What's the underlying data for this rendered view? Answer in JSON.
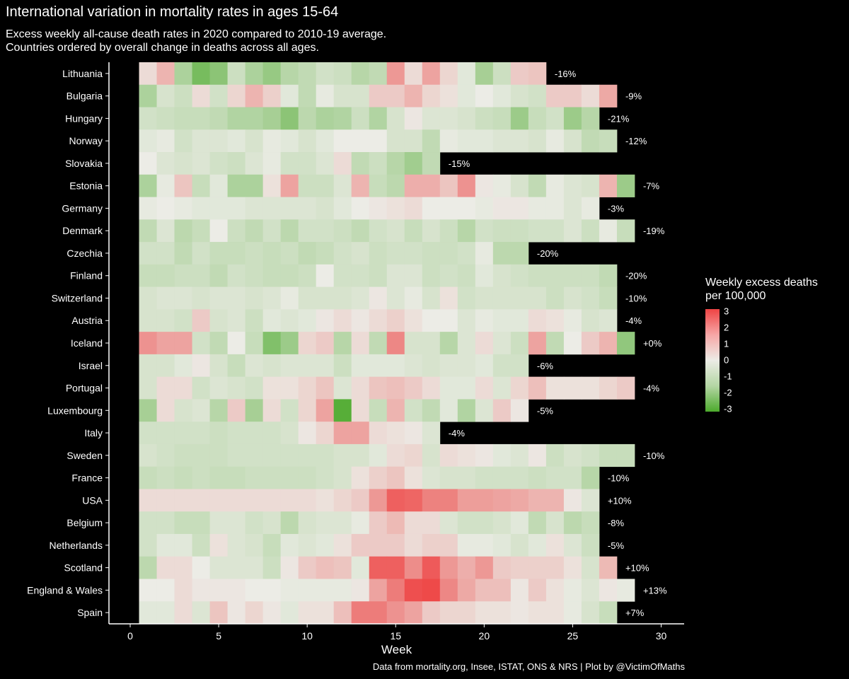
{
  "chart_data": {
    "type": "heatmap",
    "title": "International variation in mortality rates in ages 15-64",
    "subtitle_lines": [
      "Excess weekly all-cause death rates in 2020 compared to 2010-19 average.",
      "Countries ordered by overall change in deaths across all ages."
    ],
    "xlabel": "Week",
    "xlim": [
      -1.2,
      31.3
    ],
    "xticks": [
      0,
      5,
      10,
      15,
      20,
      25,
      30
    ],
    "caption": "Data from mortality.org, Insee, ISTAT, ONS & NRS | Plot by @VictimOfMaths",
    "legend": {
      "title_lines": [
        "Weekly excess deaths",
        "per 100,000"
      ],
      "labels": [
        "3",
        "2",
        "1",
        "0",
        "-1",
        "-2",
        "-3"
      ],
      "range": [
        -3,
        3
      ],
      "colors": {
        "high": "#ee4444",
        "mid": "#ecece6",
        "low": "#4caa2c"
      }
    },
    "countries": [
      {
        "name": "Lithuania",
        "change": "-16%",
        "values": [
          0.3,
          1.0,
          -1.2,
          -2.2,
          -1.8,
          -0.6,
          -1.2,
          -1.6,
          -1.0,
          -0.8,
          -0.5,
          -0.6,
          -1.0,
          -0.8,
          1.5,
          0.3,
          1.3,
          0.4,
          -0.2,
          -1.3,
          -0.6,
          0.6,
          0.7
        ]
      },
      {
        "name": "Bulgaria",
        "change": "-9%",
        "values": [
          -1.2,
          -0.4,
          -0.6,
          0.3,
          -0.5,
          0.4,
          1.0,
          0.5,
          -0.2,
          -0.8,
          -0.1,
          -0.4,
          -0.4,
          0.6,
          0.6,
          1.0,
          0.4,
          0.2,
          -0.2,
          0.0,
          -0.2,
          -0.4,
          -0.5,
          0.6,
          0.6,
          0.3,
          1.2
        ]
      },
      {
        "name": "Hungary",
        "change": "-21%",
        "values": [
          -0.5,
          -0.6,
          -0.7,
          -0.7,
          -0.8,
          -1.1,
          -1.1,
          -1.3,
          -1.8,
          -0.9,
          -1.2,
          -1.1,
          -0.6,
          -1.1,
          -0.4,
          0.1,
          -0.3,
          -0.3,
          -0.4,
          -0.6,
          -0.7,
          -1.5,
          -0.7,
          -0.5,
          -1.5,
          -1.0
        ]
      },
      {
        "name": "Norway",
        "change": "-12%",
        "values": [
          -0.2,
          -0.1,
          -0.5,
          -0.3,
          -0.3,
          -0.2,
          -0.4,
          -0.1,
          -0.2,
          -0.4,
          -0.2,
          0.0,
          0.0,
          0.0,
          -0.4,
          -0.4,
          -0.8,
          -0.1,
          -0.2,
          -0.2,
          -0.3,
          -0.3,
          -0.4,
          -0.1,
          -0.4,
          -0.8,
          -0.7
        ]
      },
      {
        "name": "Slovakia",
        "change": "-15%",
        "values": [
          0.0,
          -0.3,
          -0.4,
          -0.3,
          -0.5,
          -0.6,
          -0.3,
          -0.1,
          -0.5,
          -0.5,
          -0.3,
          0.3,
          -0.8,
          -0.6,
          -1.0,
          -1.4,
          -0.8
        ]
      },
      {
        "name": "Estonia",
        "change": "-7%",
        "values": [
          -1.2,
          -0.1,
          0.7,
          -0.7,
          -0.2,
          -1.2,
          -1.2,
          0.2,
          1.3,
          -0.6,
          -0.6,
          -0.3,
          1.0,
          -0.7,
          -0.9,
          1.1,
          1.1,
          0.7,
          1.6,
          0.1,
          -0.1,
          -0.4,
          -0.8,
          -0.1,
          -0.3,
          -0.4,
          1.0,
          -1.5
        ]
      },
      {
        "name": "Germany",
        "change": "-3%",
        "values": [
          -0.1,
          0.0,
          -0.1,
          -0.2,
          -0.2,
          -0.2,
          -0.3,
          -0.3,
          -0.3,
          -0.3,
          -0.4,
          -0.2,
          0.0,
          0.1,
          0.2,
          0.3,
          0.0,
          0.0,
          0.0,
          -0.1,
          0.1,
          0.1,
          -0.1,
          -0.1,
          -0.3,
          -0.1
        ]
      },
      {
        "name": "Denmark",
        "change": "-19%",
        "values": [
          -0.8,
          -0.3,
          -0.9,
          -0.7,
          0.0,
          -0.6,
          -0.8,
          -0.5,
          -0.9,
          -0.5,
          -0.5,
          -0.6,
          -0.8,
          -0.5,
          -0.4,
          -0.7,
          -0.4,
          -0.6,
          -1.0,
          -0.5,
          -0.6,
          -0.6,
          -0.5,
          -0.5,
          -0.3,
          -0.6,
          -0.1,
          -0.7
        ]
      },
      {
        "name": "Czechia",
        "change": "-20%",
        "values": [
          -0.5,
          -0.5,
          -0.8,
          -0.5,
          -0.7,
          -0.7,
          -0.6,
          -0.7,
          -0.6,
          -0.8,
          -0.7,
          -0.5,
          -0.4,
          -0.6,
          -0.5,
          -0.5,
          -0.6,
          -0.6,
          -0.5,
          -0.1,
          -0.9,
          -0.9
        ]
      },
      {
        "name": "Finland",
        "change": "-20%",
        "values": [
          -0.7,
          -0.7,
          -0.6,
          -0.6,
          -0.8,
          -0.5,
          -0.6,
          -0.7,
          -0.7,
          -0.6,
          0.0,
          -0.5,
          -0.5,
          -0.6,
          -0.3,
          -0.3,
          -0.6,
          -0.5,
          -0.6,
          -0.2,
          -0.4,
          -0.5,
          -0.6,
          -0.6,
          -0.6,
          -0.6,
          -0.8
        ]
      },
      {
        "name": "Switzerland",
        "change": "-10%",
        "values": [
          -0.4,
          -0.3,
          -0.3,
          -0.4,
          -0.3,
          -0.3,
          -0.4,
          -0.3,
          -0.1,
          -0.4,
          -0.4,
          -0.4,
          -0.3,
          0.1,
          -0.3,
          -0.1,
          -0.4,
          0.2,
          -0.5,
          -0.4,
          -0.4,
          -0.4,
          -0.4,
          -0.6,
          -0.4,
          -0.5,
          -0.7
        ]
      },
      {
        "name": "Austria",
        "change": "-4%",
        "values": [
          -0.4,
          -0.4,
          -0.5,
          0.6,
          -0.4,
          -0.3,
          -0.6,
          -0.2,
          -0.3,
          -0.2,
          0.1,
          0.3,
          0.1,
          0.3,
          0.5,
          0.2,
          0.0,
          0.0,
          -0.3,
          -0.1,
          -0.2,
          -0.2,
          0.3,
          0.2,
          -0.1,
          -0.4,
          -0.3
        ]
      },
      {
        "name": "Iceland",
        "change": "+0%",
        "values": [
          1.6,
          1.3,
          1.3,
          -0.5,
          -0.8,
          0.0,
          -0.7,
          -2.0,
          -1.5,
          0.4,
          0.6,
          -1.0,
          0.3,
          -0.8,
          1.8,
          -0.4,
          -0.4,
          -1.0,
          -0.3,
          0.3,
          -0.3,
          -0.6,
          1.3,
          -0.8,
          0.0,
          0.6,
          1.0,
          -1.7
        ]
      },
      {
        "name": "Israel",
        "change": "-6%",
        "values": [
          -0.4,
          -0.4,
          -0.2,
          0.1,
          -0.4,
          -0.7,
          -0.3,
          -0.4,
          -0.3,
          -0.3,
          -0.3,
          -0.6,
          -0.2,
          -0.2,
          -0.2,
          -0.3,
          -0.4,
          -0.3,
          -0.3,
          -0.2,
          -0.5,
          -0.5
        ]
      },
      {
        "name": "Portugal",
        "change": "-4%",
        "values": [
          -0.4,
          0.3,
          0.3,
          -0.5,
          -0.3,
          -0.4,
          -0.5,
          0.2,
          0.2,
          0.4,
          0.7,
          -0.3,
          0.3,
          0.7,
          0.8,
          0.6,
          0.3,
          -0.2,
          -0.2,
          0.3,
          -0.3,
          0.4,
          0.8,
          0.2,
          0.2,
          0.2,
          0.4,
          0.6
        ]
      },
      {
        "name": "Luxembourg",
        "change": "-5%",
        "values": [
          -1.3,
          0.3,
          -0.4,
          -0.3,
          -1.0,
          0.6,
          -1.3,
          0.3,
          -0.5,
          0.4,
          1.3,
          -2.8,
          0.3,
          -0.7,
          1.0,
          -0.5,
          -0.8,
          -0.2,
          -1.1,
          -0.3,
          0.6,
          0.1
        ]
      },
      {
        "name": "Italy",
        "change": "-4%",
        "values": [
          -0.5,
          -0.5,
          -0.5,
          -0.5,
          -0.6,
          -0.5,
          -0.5,
          -0.5,
          -0.4,
          0.1,
          0.4,
          1.3,
          1.3,
          0.3,
          0.2,
          0.1,
          -0.3
        ]
      },
      {
        "name": "Sweden",
        "change": "-10%",
        "values": [
          -0.4,
          -0.5,
          -0.6,
          -0.6,
          -0.6,
          -0.5,
          -0.5,
          -0.5,
          -0.5,
          -0.5,
          -0.5,
          -0.4,
          -0.4,
          -0.2,
          0.3,
          0.4,
          -0.4,
          0.3,
          0.2,
          0.1,
          -0.2,
          -0.3,
          0.1,
          -0.6,
          -0.4,
          -0.5,
          -0.7,
          -0.7
        ]
      },
      {
        "name": "France",
        "change": "-10%",
        "values": [
          -0.7,
          -0.6,
          -0.7,
          -0.6,
          -0.7,
          -0.7,
          -0.6,
          -0.6,
          -0.6,
          -0.6,
          -0.5,
          -0.4,
          0.2,
          0.5,
          0.7,
          0.2,
          -0.3,
          -0.4,
          -0.4,
          -0.5,
          -0.5,
          -0.5,
          -0.6,
          -0.5,
          -0.5,
          -1.0
        ]
      },
      {
        "name": "USA",
        "change": "+10%",
        "values": [
          0.3,
          0.3,
          0.3,
          0.3,
          0.3,
          0.3,
          0.3,
          0.3,
          0.3,
          0.3,
          0.2,
          0.4,
          0.6,
          1.5,
          2.5,
          2.4,
          1.9,
          1.9,
          1.4,
          1.4,
          1.3,
          1.2,
          1.0,
          1.0,
          0.1,
          -0.3
        ]
      },
      {
        "name": "Belgium",
        "change": "-8%",
        "values": [
          -0.5,
          -0.5,
          -0.7,
          -0.7,
          -0.3,
          -0.3,
          -0.5,
          -0.4,
          -0.9,
          -0.4,
          -0.3,
          -0.3,
          -0.1,
          0.6,
          0.9,
          0.3,
          0.3,
          -0.3,
          -0.5,
          -0.5,
          -0.4,
          -0.2,
          -0.8,
          -0.4,
          -0.9,
          -0.7
        ]
      },
      {
        "name": "Netherlands",
        "change": "-5%",
        "values": [
          -0.5,
          -0.2,
          -0.2,
          -0.6,
          0.2,
          -0.3,
          -0.4,
          -0.7,
          -0.2,
          -0.3,
          -0.2,
          0.2,
          0.6,
          0.6,
          0.6,
          0.3,
          0.5,
          0.5,
          -0.1,
          -0.1,
          -0.2,
          -0.4,
          -0.2,
          0.2,
          -0.3,
          -0.6
        ]
      },
      {
        "name": "Scotland",
        "change": "+10%",
        "values": [
          -0.9,
          0.3,
          0.3,
          0.0,
          -0.3,
          -0.3,
          -0.3,
          -0.6,
          0.1,
          0.6,
          0.8,
          0.7,
          -0.2,
          2.5,
          2.5,
          1.7,
          2.6,
          1.5,
          1.1,
          1.5,
          0.6,
          0.5,
          0.5,
          0.5,
          0.2,
          -0.4,
          0.9
        ]
      },
      {
        "name": "England & Wales",
        "change": "+13%",
        "values": [
          0.0,
          0.0,
          0.3,
          0.1,
          0.1,
          0.1,
          0.0,
          0.0,
          -0.1,
          -0.1,
          -0.1,
          -0.1,
          0.1,
          1.3,
          2.0,
          2.8,
          2.9,
          1.8,
          1.2,
          0.8,
          0.8,
          0.1,
          0.6,
          0.2,
          -0.1,
          -0.3,
          0.1,
          -0.1
        ]
      },
      {
        "name": "Spain",
        "change": "+7%",
        "values": [
          -0.2,
          -0.2,
          0.3,
          -0.3,
          0.7,
          0.1,
          0.4,
          0.1,
          -0.2,
          0.2,
          0.2,
          0.8,
          2.0,
          2.0,
          1.6,
          1.3,
          0.6,
          0.4,
          0.4,
          0.2,
          0.2,
          0.1,
          0.2,
          0.2,
          -0.1,
          -0.4,
          -0.7
        ]
      }
    ]
  }
}
